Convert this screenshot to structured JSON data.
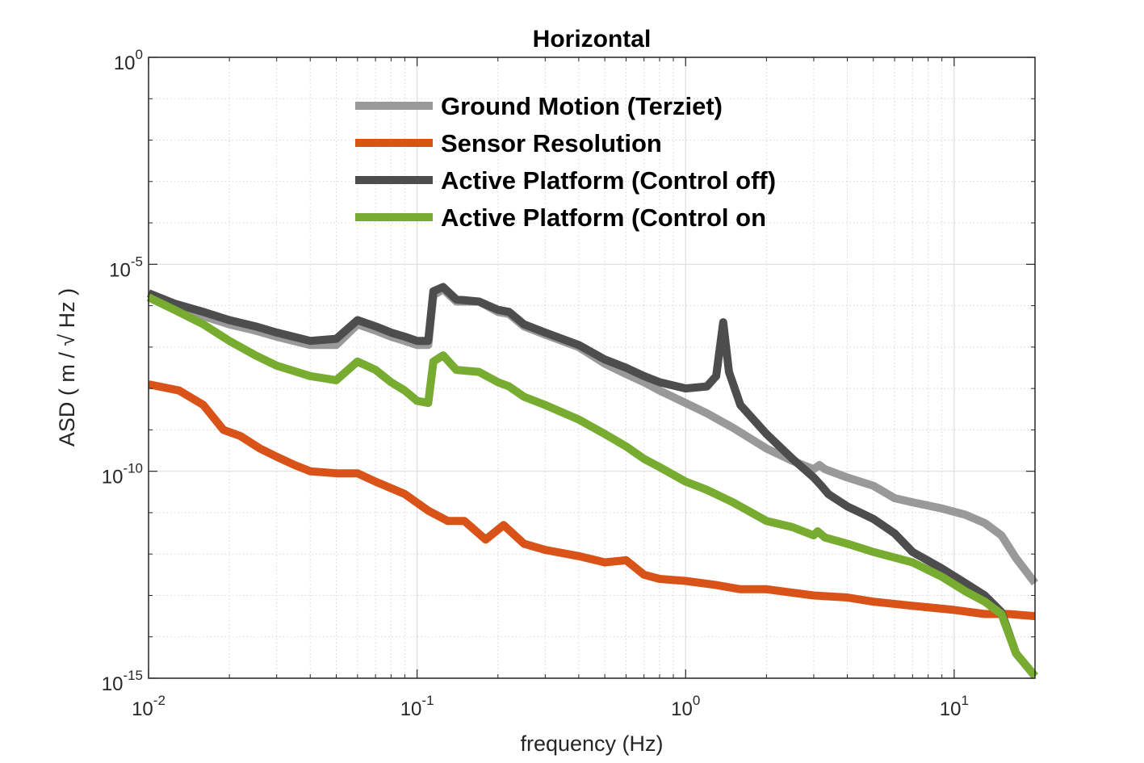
{
  "chart_data": {
    "type": "line",
    "title": "Horizontal",
    "xlabel": "frequency (Hz)",
    "ylabel": "ASD ( m / √ Hz )",
    "xscale": "log",
    "yscale": "log",
    "xlim": [
      0.01,
      20
    ],
    "ylim": [
      1e-15,
      1
    ],
    "grid": true,
    "legend_position": "top-center",
    "x_ticks": [
      {
        "value": 0.01,
        "base": "10",
        "exp": "-2"
      },
      {
        "value": 0.1,
        "base": "10",
        "exp": "-1"
      },
      {
        "value": 1,
        "base": "10",
        "exp": "0"
      },
      {
        "value": 10,
        "base": "10",
        "exp": "1"
      }
    ],
    "y_ticks": [
      {
        "value": 1,
        "base": "10",
        "exp": "0"
      },
      {
        "value": 1e-05,
        "base": "10",
        "exp": "-5"
      },
      {
        "value": 1e-10,
        "base": "10",
        "exp": "-10"
      },
      {
        "value": 1e-15,
        "base": "10",
        "exp": "-15"
      }
    ],
    "series": [
      {
        "name": "Ground Motion (Terziet)",
        "color": "#999999",
        "points": [
          [
            0.01,
            -5.8
          ],
          [
            0.0125,
            -6.05
          ],
          [
            0.016,
            -6.25
          ],
          [
            0.02,
            -6.45
          ],
          [
            0.025,
            -6.6
          ],
          [
            0.03,
            -6.75
          ],
          [
            0.04,
            -6.95
          ],
          [
            0.05,
            -6.95
          ],
          [
            0.06,
            -6.45
          ],
          [
            0.07,
            -6.6
          ],
          [
            0.08,
            -6.75
          ],
          [
            0.09,
            -6.85
          ],
          [
            0.1,
            -6.95
          ],
          [
            0.11,
            -6.95
          ],
          [
            0.115,
            -5.75
          ],
          [
            0.125,
            -5.6
          ],
          [
            0.14,
            -5.9
          ],
          [
            0.17,
            -5.9
          ],
          [
            0.2,
            -6.15
          ],
          [
            0.22,
            -6.2
          ],
          [
            0.25,
            -6.5
          ],
          [
            0.3,
            -6.7
          ],
          [
            0.4,
            -7.0
          ],
          [
            0.5,
            -7.4
          ],
          [
            0.6,
            -7.65
          ],
          [
            0.7,
            -7.85
          ],
          [
            0.8,
            -8.05
          ],
          [
            1.0,
            -8.35
          ],
          [
            1.2,
            -8.6
          ],
          [
            1.5,
            -8.95
          ],
          [
            2.0,
            -9.45
          ],
          [
            2.5,
            -9.75
          ],
          [
            3.0,
            -9.95
          ],
          [
            3.15,
            -9.85
          ],
          [
            3.3,
            -9.95
          ],
          [
            4.0,
            -10.15
          ],
          [
            5.0,
            -10.35
          ],
          [
            6.0,
            -10.65
          ],
          [
            7.0,
            -10.75
          ],
          [
            9.0,
            -10.9
          ],
          [
            11.0,
            -11.05
          ],
          [
            13.0,
            -11.25
          ],
          [
            15.0,
            -11.55
          ],
          [
            17.0,
            -12.1
          ],
          [
            20.0,
            -12.7
          ]
        ]
      },
      {
        "name": "Sensor Resolution",
        "color": "#d95319",
        "points": [
          [
            0.01,
            -7.9
          ],
          [
            0.013,
            -8.05
          ],
          [
            0.016,
            -8.4
          ],
          [
            0.019,
            -9.0
          ],
          [
            0.022,
            -9.15
          ],
          [
            0.026,
            -9.45
          ],
          [
            0.03,
            -9.65
          ],
          [
            0.035,
            -9.85
          ],
          [
            0.04,
            -10.0
          ],
          [
            0.05,
            -10.05
          ],
          [
            0.06,
            -10.05
          ],
          [
            0.07,
            -10.25
          ],
          [
            0.09,
            -10.55
          ],
          [
            0.11,
            -10.95
          ],
          [
            0.13,
            -11.2
          ],
          [
            0.15,
            -11.2
          ],
          [
            0.18,
            -11.65
          ],
          [
            0.21,
            -11.3
          ],
          [
            0.25,
            -11.75
          ],
          [
            0.3,
            -11.9
          ],
          [
            0.4,
            -12.05
          ],
          [
            0.5,
            -12.2
          ],
          [
            0.6,
            -12.15
          ],
          [
            0.7,
            -12.5
          ],
          [
            0.8,
            -12.6
          ],
          [
            1.0,
            -12.65
          ],
          [
            1.3,
            -12.75
          ],
          [
            1.6,
            -12.85
          ],
          [
            2.0,
            -12.85
          ],
          [
            3.0,
            -13.0
          ],
          [
            4.0,
            -13.05
          ],
          [
            5.0,
            -13.15
          ],
          [
            7.0,
            -13.25
          ],
          [
            10.0,
            -13.35
          ],
          [
            13.0,
            -13.45
          ],
          [
            16.0,
            -13.45
          ],
          [
            20.0,
            -13.5
          ]
        ]
      },
      {
        "name": "Active Platform (Control off)",
        "color": "#4d4d4d",
        "points": [
          [
            0.01,
            -5.7
          ],
          [
            0.0125,
            -5.95
          ],
          [
            0.016,
            -6.15
          ],
          [
            0.02,
            -6.35
          ],
          [
            0.025,
            -6.5
          ],
          [
            0.03,
            -6.65
          ],
          [
            0.04,
            -6.85
          ],
          [
            0.05,
            -6.8
          ],
          [
            0.06,
            -6.35
          ],
          [
            0.07,
            -6.5
          ],
          [
            0.08,
            -6.65
          ],
          [
            0.09,
            -6.75
          ],
          [
            0.1,
            -6.85
          ],
          [
            0.11,
            -6.85
          ],
          [
            0.115,
            -5.65
          ],
          [
            0.125,
            -5.55
          ],
          [
            0.14,
            -5.85
          ],
          [
            0.17,
            -5.9
          ],
          [
            0.2,
            -6.1
          ],
          [
            0.22,
            -6.15
          ],
          [
            0.25,
            -6.45
          ],
          [
            0.3,
            -6.65
          ],
          [
            0.4,
            -6.95
          ],
          [
            0.5,
            -7.3
          ],
          [
            0.6,
            -7.5
          ],
          [
            0.7,
            -7.7
          ],
          [
            0.8,
            -7.85
          ],
          [
            1.0,
            -8.0
          ],
          [
            1.2,
            -7.95
          ],
          [
            1.3,
            -7.7
          ],
          [
            1.38,
            -6.4
          ],
          [
            1.45,
            -7.6
          ],
          [
            1.6,
            -8.4
          ],
          [
            2.0,
            -9.1
          ],
          [
            2.5,
            -9.7
          ],
          [
            3.0,
            -10.15
          ],
          [
            3.2,
            -10.35
          ],
          [
            3.4,
            -10.55
          ],
          [
            4.0,
            -10.85
          ],
          [
            5.0,
            -11.15
          ],
          [
            6.0,
            -11.5
          ],
          [
            7.0,
            -11.95
          ],
          [
            9.0,
            -12.35
          ],
          [
            11.0,
            -12.7
          ],
          [
            13.0,
            -13.0
          ],
          [
            15.0,
            -13.4
          ],
          [
            17.0,
            -14.4
          ],
          [
            20.0,
            -14.95
          ]
        ]
      },
      {
        "name": "Active Platform (Control on",
        "color": "#77ac30",
        "points": [
          [
            0.01,
            -5.8
          ],
          [
            0.0125,
            -6.1
          ],
          [
            0.016,
            -6.45
          ],
          [
            0.02,
            -6.85
          ],
          [
            0.025,
            -7.2
          ],
          [
            0.03,
            -7.45
          ],
          [
            0.04,
            -7.7
          ],
          [
            0.05,
            -7.8
          ],
          [
            0.06,
            -7.35
          ],
          [
            0.07,
            -7.55
          ],
          [
            0.08,
            -7.85
          ],
          [
            0.09,
            -8.05
          ],
          [
            0.1,
            -8.3
          ],
          [
            0.11,
            -8.35
          ],
          [
            0.115,
            -7.35
          ],
          [
            0.125,
            -7.2
          ],
          [
            0.14,
            -7.55
          ],
          [
            0.17,
            -7.6
          ],
          [
            0.2,
            -7.85
          ],
          [
            0.22,
            -7.95
          ],
          [
            0.25,
            -8.2
          ],
          [
            0.3,
            -8.4
          ],
          [
            0.4,
            -8.75
          ],
          [
            0.5,
            -9.1
          ],
          [
            0.6,
            -9.4
          ],
          [
            0.7,
            -9.7
          ],
          [
            0.8,
            -9.9
          ],
          [
            1.0,
            -10.25
          ],
          [
            1.2,
            -10.45
          ],
          [
            1.5,
            -10.75
          ],
          [
            2.0,
            -11.2
          ],
          [
            2.5,
            -11.35
          ],
          [
            3.0,
            -11.55
          ],
          [
            3.1,
            -11.45
          ],
          [
            3.3,
            -11.6
          ],
          [
            4.0,
            -11.75
          ],
          [
            5.0,
            -11.95
          ],
          [
            7.0,
            -12.2
          ],
          [
            9.0,
            -12.55
          ],
          [
            11.0,
            -12.9
          ],
          [
            13.0,
            -13.15
          ],
          [
            15.0,
            -13.45
          ],
          [
            17.0,
            -14.4
          ],
          [
            20.0,
            -14.95
          ]
        ]
      }
    ]
  }
}
